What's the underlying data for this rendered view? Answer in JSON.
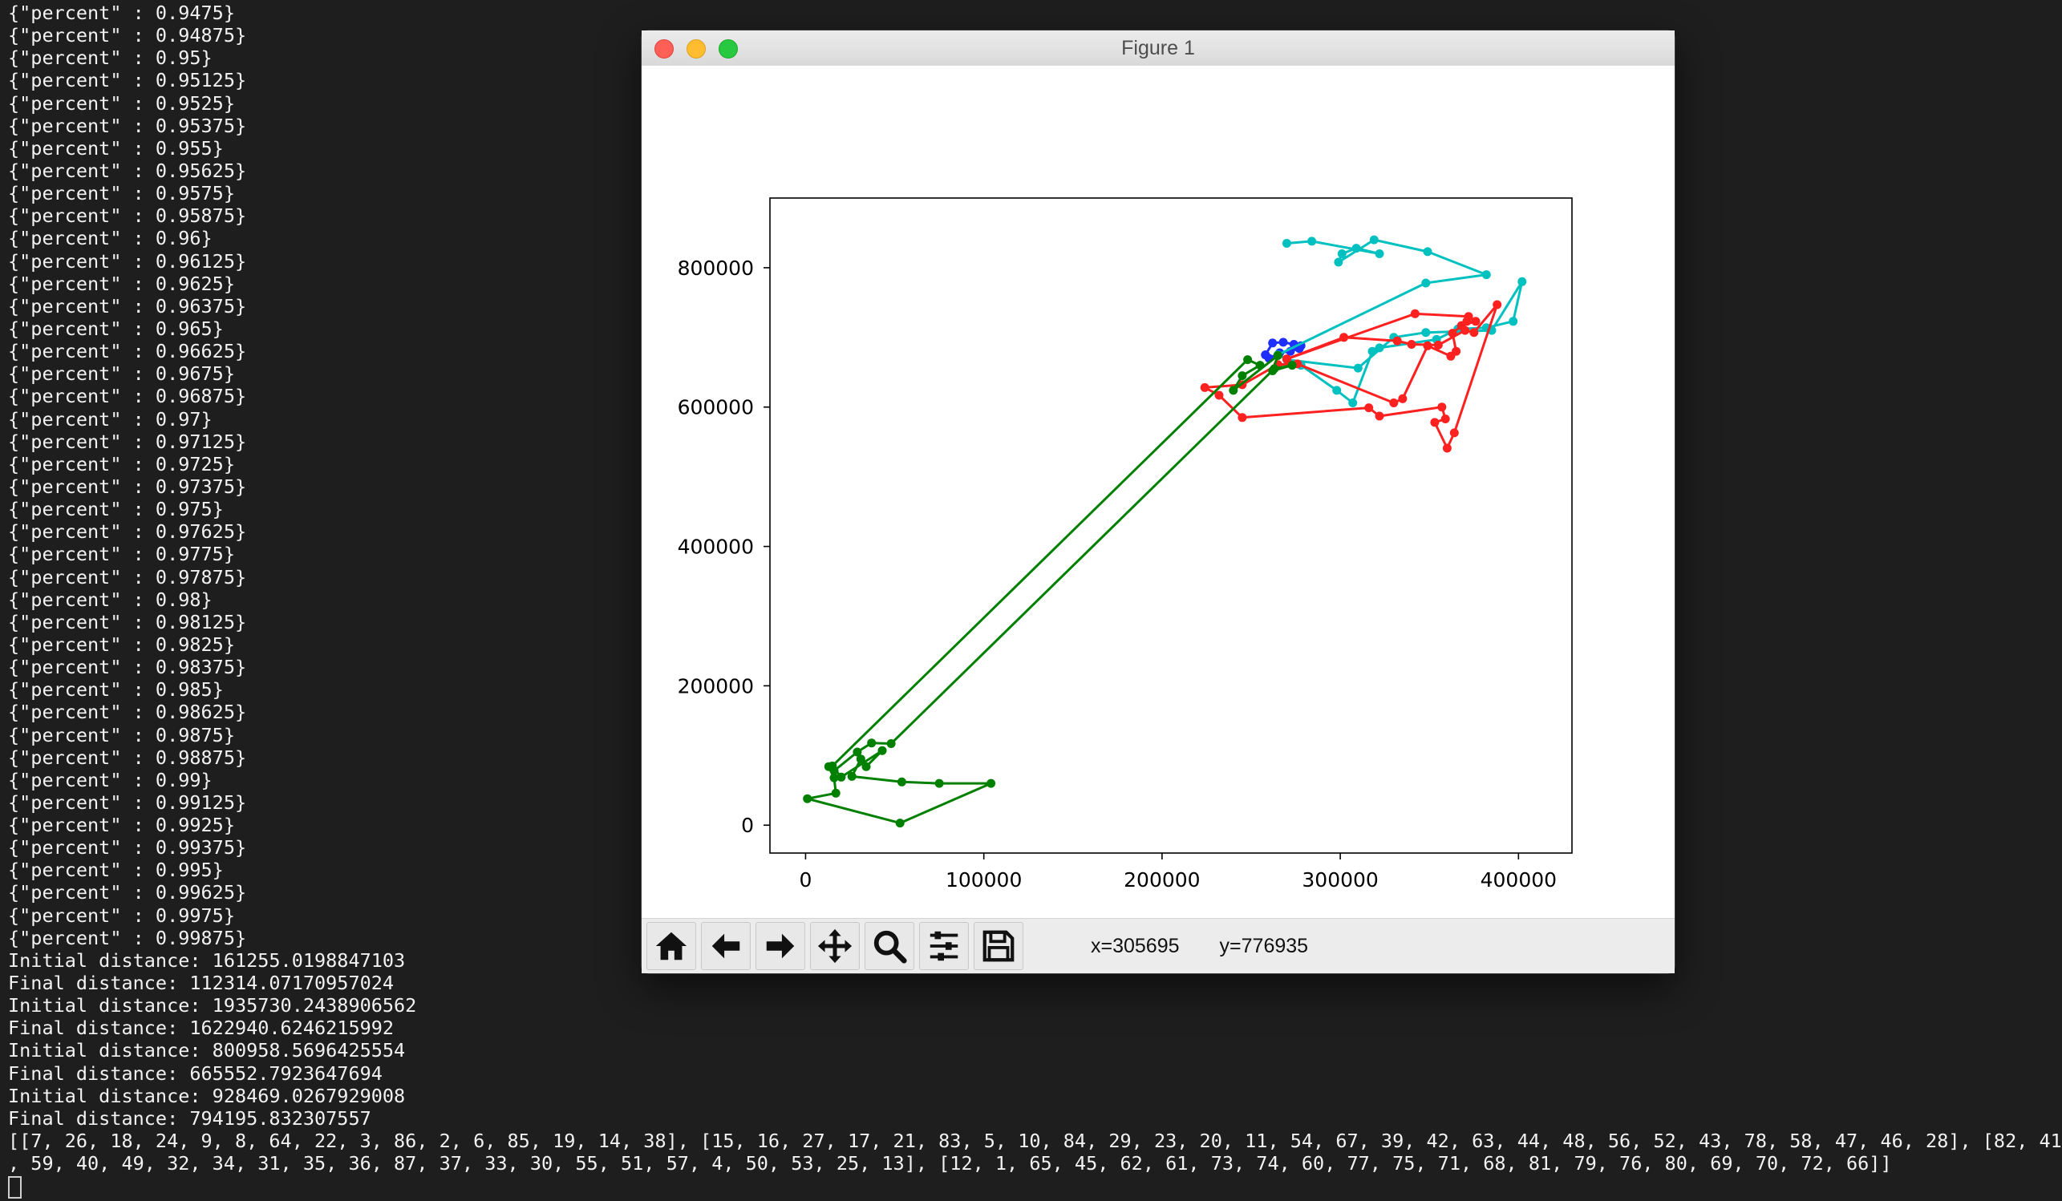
{
  "terminal": {
    "lines": [
      "{\"percent\" : 0.9475}",
      "{\"percent\" : 0.94875}",
      "{\"percent\" : 0.95}",
      "{\"percent\" : 0.95125}",
      "{\"percent\" : 0.9525}",
      "{\"percent\" : 0.95375}",
      "{\"percent\" : 0.955}",
      "{\"percent\" : 0.95625}",
      "{\"percent\" : 0.9575}",
      "{\"percent\" : 0.95875}",
      "{\"percent\" : 0.96}",
      "{\"percent\" : 0.96125}",
      "{\"percent\" : 0.9625}",
      "{\"percent\" : 0.96375}",
      "{\"percent\" : 0.965}",
      "{\"percent\" : 0.96625}",
      "{\"percent\" : 0.9675}",
      "{\"percent\" : 0.96875}",
      "{\"percent\" : 0.97}",
      "{\"percent\" : 0.97125}",
      "{\"percent\" : 0.9725}",
      "{\"percent\" : 0.97375}",
      "{\"percent\" : 0.975}",
      "{\"percent\" : 0.97625}",
      "{\"percent\" : 0.9775}",
      "{\"percent\" : 0.97875}",
      "{\"percent\" : 0.98}",
      "{\"percent\" : 0.98125}",
      "{\"percent\" : 0.9825}",
      "{\"percent\" : 0.98375}",
      "{\"percent\" : 0.985}",
      "{\"percent\" : 0.98625}",
      "{\"percent\" : 0.9875}",
      "{\"percent\" : 0.98875}",
      "{\"percent\" : 0.99}",
      "{\"percent\" : 0.99125}",
      "{\"percent\" : 0.9925}",
      "{\"percent\" : 0.99375}",
      "{\"percent\" : 0.995}",
      "{\"percent\" : 0.99625}",
      "{\"percent\" : 0.9975}",
      "{\"percent\" : 0.99875}",
      "Initial distance: 161255.0198847103",
      "Final distance: 112314.07170957024",
      "Initial distance: 1935730.2438906562",
      "Final distance: 1622940.6246215992",
      "Initial distance: 800958.5696425554",
      "Final distance: 665552.7923647694",
      "Initial distance: 928469.0267929008",
      "Final distance: 794195.832307557",
      "[[7, 26, 18, 24, 9, 8, 64, 22, 3, 86, 2, 6, 85, 19, 14, 38], [15, 16, 27, 17, 21, 83, 5, 10, 84, 29, 23, 20, 11, 54, 67, 39, 42, 63, 44, 48, 56, 52, 43, 78, 58, 47, 46, 28], [82, 41",
      ", 59, 40, 49, 32, 34, 31, 35, 36, 87, 37, 33, 30, 55, 51, 57, 4, 50, 53, 25, 13], [12, 1, 65, 45, 62, 61, 73, 74, 60, 77, 75, 71, 68, 81, 79, 76, 80, 69, 70, 72, 66]]"
    ]
  },
  "window": {
    "title": "Figure 1"
  },
  "toolbar": {
    "buttons": [
      {
        "name": "home",
        "icon": "home-icon"
      },
      {
        "name": "back",
        "icon": "arrow-left-icon"
      },
      {
        "name": "forward",
        "icon": "arrow-right-icon"
      },
      {
        "name": "pan",
        "icon": "move-icon"
      },
      {
        "name": "zoom",
        "icon": "magnifier-icon"
      },
      {
        "name": "configure",
        "icon": "sliders-icon"
      },
      {
        "name": "save",
        "icon": "floppy-icon"
      }
    ],
    "x_readout": "x=305695",
    "y_readout": "y=776935"
  },
  "chart_data": {
    "type": "line",
    "title": "",
    "xlabel": "",
    "ylabel": "",
    "xlim": [
      -20000,
      430000
    ],
    "ylim": [
      -40000,
      900000
    ],
    "xticks": [
      "0",
      "100000",
      "200000",
      "300000",
      "400000"
    ],
    "xtick_values": [
      0,
      100000,
      200000,
      300000,
      400000
    ],
    "yticks": [
      "0",
      "200000",
      "400000",
      "600000",
      "800000"
    ],
    "ytick_values": [
      0,
      200000,
      400000,
      600000,
      800000
    ],
    "grid": false,
    "series": [
      {
        "color": "#1f2fff",
        "x": [
          258000,
          262000,
          268000,
          274000,
          278000,
          277000,
          272000,
          266000,
          260000,
          258000
        ],
        "y": [
          675000,
          692000,
          693000,
          690000,
          688000,
          684000,
          680000,
          678000,
          670000,
          675000
        ]
      },
      {
        "color": "#00c0c0",
        "x": [
          270000,
          310000,
          330000,
          348000,
          385000,
          402000,
          397000,
          382000,
          366000,
          354000,
          322000,
          318000,
          307000,
          298000,
          278000,
          265000,
          348000,
          382000,
          349000,
          319000,
          299000,
          301000,
          309000,
          322000,
          284000,
          270000
        ],
        "y": [
          668000,
          656000,
          700000,
          707000,
          710000,
          780000,
          723000,
          714000,
          712000,
          697000,
          685000,
          680000,
          606000,
          624000,
          660000,
          675000,
          778000,
          790000,
          823000,
          840000,
          808000,
          820000,
          828000,
          820000,
          838000,
          835000
        ]
      },
      {
        "color": "#ff2020",
        "x": [
          270000,
          302000,
          332000,
          340000,
          355000,
          370000,
          375000,
          388000,
          364000,
          360000,
          353000,
          359000,
          357000,
          322000,
          316000,
          245000,
          232000,
          224000,
          245000,
          265000,
          276000,
          330000,
          335000,
          349000,
          362000,
          365000,
          363000,
          368000,
          376000,
          371000,
          372000,
          342000,
          270000
        ],
        "y": [
          669000,
          700000,
          695000,
          690000,
          689000,
          710000,
          707000,
          747000,
          563000,
          541000,
          578000,
          583000,
          600000,
          587000,
          599000,
          585000,
          617000,
          628000,
          632000,
          661000,
          662000,
          606000,
          612000,
          688000,
          673000,
          680000,
          706000,
          717000,
          723000,
          723000,
          730000,
          734000,
          669000
        ]
      },
      {
        "color": "#008000",
        "x": [
          265000,
          240000,
          245000,
          255000,
          248000,
          15000,
          20000,
          43000,
          34000,
          31000,
          26000,
          54000,
          75000,
          104000,
          53000,
          1000,
          17000,
          16000,
          13000,
          16000,
          29000,
          37000,
          48000,
          263000,
          273000,
          262000,
          265000
        ],
        "y": [
          674000,
          624000,
          645000,
          660000,
          668000,
          85000,
          69000,
          107000,
          84000,
          95000,
          70000,
          62000,
          60000,
          60000,
          3000,
          38000,
          46000,
          68000,
          84000,
          78000,
          105000,
          118000,
          117000,
          655000,
          660000,
          652000,
          674000
        ]
      }
    ]
  }
}
